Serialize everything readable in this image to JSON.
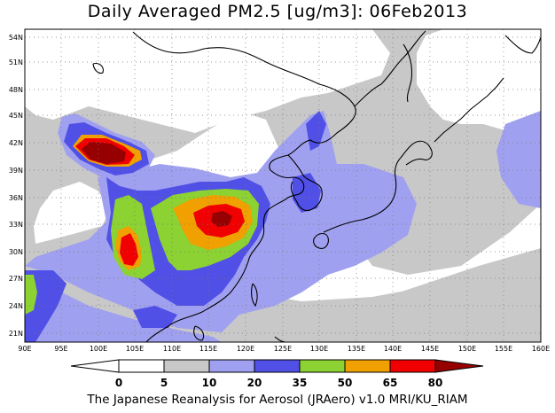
{
  "title": "Daily Averaged PM2.5 [ug/m3]: 06Feb2013",
  "footer": "The Japanese Reanalysis for Aerosol (JRAero) v1.0 MRI/KU_RIAM",
  "map": {
    "lon_labels": [
      "90E",
      "95E",
      "100E",
      "105E",
      "110E",
      "115E",
      "120E",
      "125E",
      "130E",
      "135E",
      "140E",
      "145E",
      "150E",
      "155E",
      "160E"
    ],
    "lat_labels": [
      "21N",
      "24N",
      "27N",
      "30N",
      "33N",
      "36N",
      "39N",
      "42N",
      "45N",
      "48N",
      "51N",
      "54N"
    ]
  },
  "colorbar": {
    "levels": [
      "0",
      "5",
      "10",
      "20",
      "35",
      "50",
      "65",
      "80"
    ],
    "colors": [
      "#ffffff",
      "#c8c8c8",
      "#a0a0f0",
      "#5050e6",
      "#8cd232",
      "#f0a000",
      "#f00000",
      "#960000"
    ]
  }
}
